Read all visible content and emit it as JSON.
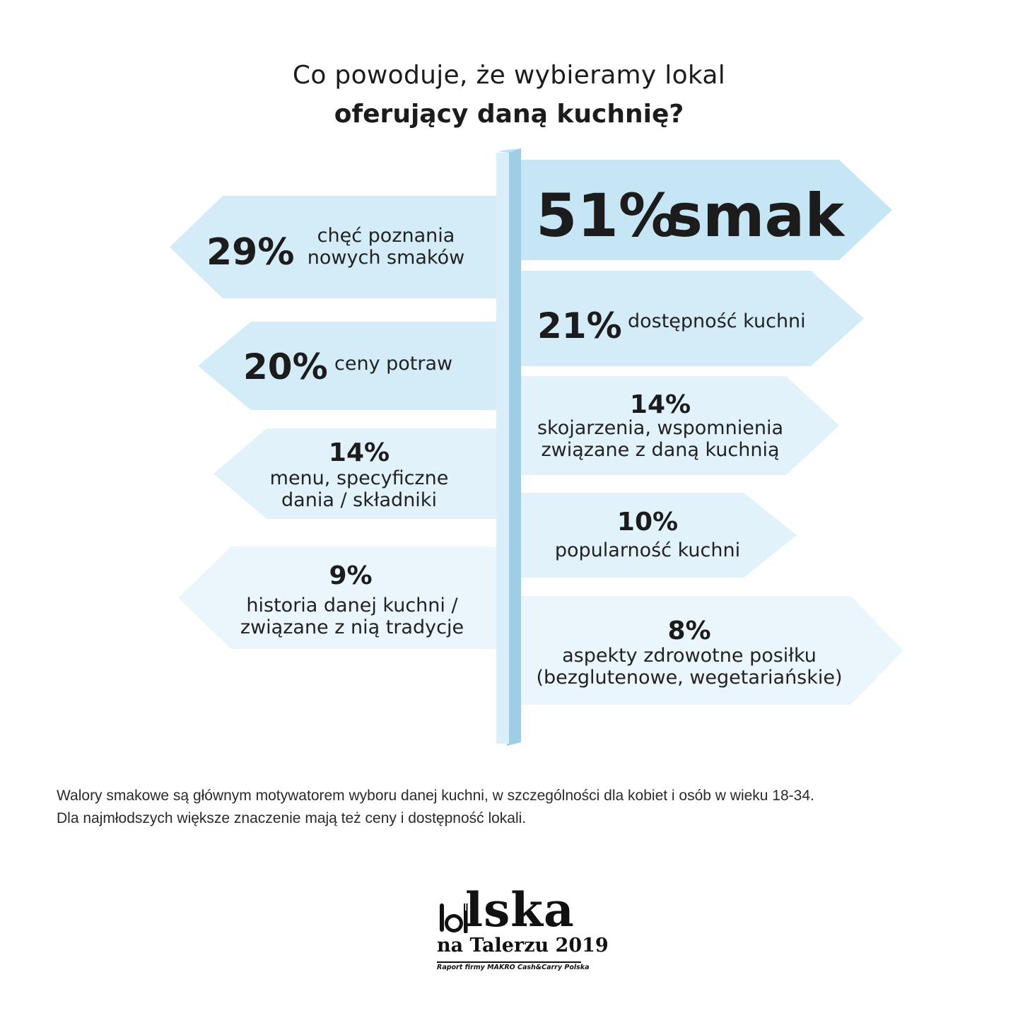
{
  "title": {
    "line1": "Co powoduje, że wybieramy lokal",
    "line2": "oferujący daną kuchnię?"
  },
  "chart_data": {
    "type": "bar",
    "values_unit": "%",
    "items": [
      {
        "value": 51,
        "label": "smak",
        "side": "right"
      },
      {
        "value": 29,
        "label": "chęć poznania nowych smaków",
        "side": "left"
      },
      {
        "value": 21,
        "label": "dostępność kuchni",
        "side": "right"
      },
      {
        "value": 20,
        "label": "ceny potraw",
        "side": "left"
      },
      {
        "value": 14,
        "label": "skojarzenia, wspomnienia związane z daną kuchnią",
        "side": "right"
      },
      {
        "value": 14,
        "label": "menu, specyficzne dania / składniki",
        "side": "left"
      },
      {
        "value": 10,
        "label": "popularność kuchni",
        "side": "right"
      },
      {
        "value": 9,
        "label": "historia danej kuchni / związane z nią tradycje",
        "side": "left"
      },
      {
        "value": 8,
        "label": "aspekty zdrowotne posiłku (bezglutenowe, wegetariańskie)",
        "side": "right"
      }
    ]
  },
  "signs": {
    "smak": {
      "pct": "51%",
      "label_lines": [
        "smak"
      ]
    },
    "nowe": {
      "pct": "29%",
      "label_lines": [
        "chęć poznania",
        "nowych smaków"
      ]
    },
    "dostep": {
      "pct": "21%",
      "label_lines": [
        "dostępność kuchni"
      ]
    },
    "ceny": {
      "pct": "20%",
      "label_lines": [
        "ceny potraw"
      ]
    },
    "skoj": {
      "pct": "14%",
      "label_lines": [
        "skojarzenia, wspomnienia",
        "związane z daną kuchnią"
      ]
    },
    "menu": {
      "pct": "14%",
      "label_lines": [
        "menu, specyficzne",
        "dania / składniki"
      ]
    },
    "popular": {
      "pct": "10%",
      "label_lines": [
        "popularność kuchni"
      ]
    },
    "historia": {
      "pct": "9%",
      "label_lines": [
        "historia danej kuchni /",
        "związane z nią tradycje"
      ]
    },
    "zdrowie": {
      "pct": "8%",
      "label_lines": [
        "aspekty zdrowotne posiłku",
        "(bezglutenowe, wegetariańskie)"
      ]
    }
  },
  "footnote": {
    "line1": "Walory smakowe są głównym motywatorem wyboru danej kuchni, w szczególności dla kobiet i osób w wieku 18-34.",
    "line2": "Dla najmłodszych większe znaczenie mają też ceny i dostępność lokali."
  },
  "logo": {
    "word": "lska",
    "subtitle": "na Talerzu 2019",
    "credit": "Raport firmy MAKRO Cash&Carry Polska"
  },
  "colors": {
    "sign_strong": "#c6e6f6",
    "sign_mid": "#d3ecf8",
    "sign_light": "#e2f2fb",
    "sign_lighter": "#eaf6fc",
    "post_front": "#d9eef9",
    "post_side": "#9fcde6",
    "text": "#1c1c1c"
  }
}
